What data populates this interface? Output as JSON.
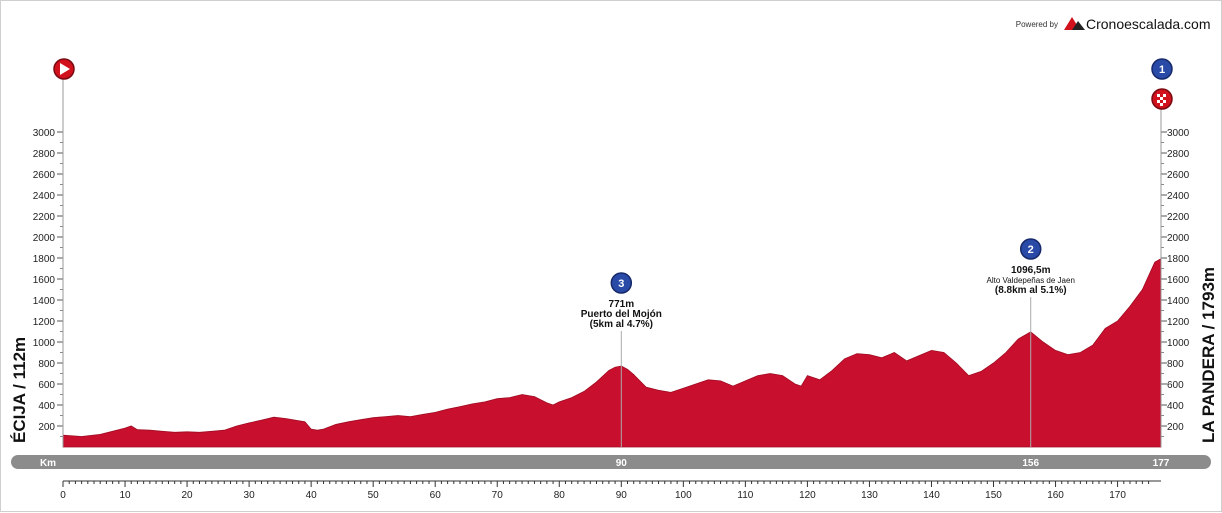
{
  "header": {
    "powered_by": "Powered by",
    "brand": "Cronoescalada.com",
    "brand_color": "#d1111c"
  },
  "chart_data": {
    "type": "area",
    "title": "",
    "xlabel": "",
    "ylabel": "",
    "xlim": [
      0,
      177
    ],
    "ylim": [
      0,
      3200
    ],
    "x_ticks": [
      0,
      10,
      20,
      30,
      40,
      50,
      60,
      70,
      80,
      90,
      100,
      110,
      120,
      130,
      140,
      150,
      160,
      170
    ],
    "y_ticks": [
      200,
      400,
      600,
      800,
      1000,
      1200,
      1400,
      1600,
      1800,
      2000,
      2200,
      2400,
      2600,
      2800,
      3000
    ],
    "grid": false,
    "fill_color": "#c8102e",
    "start_label": "ÉCIJA / 112m",
    "finish_label": "LA PANDERA / 1793m",
    "km_bar": {
      "label": "Km",
      "marks": [
        {
          "km": 90,
          "label": "90"
        },
        {
          "km": 156,
          "label": "156"
        },
        {
          "km": 177,
          "label": "177"
        }
      ]
    },
    "climbs": [
      {
        "km": 90,
        "category": "3",
        "altitude": "771m",
        "name": "Puerto del Mojón",
        "detail": "(5km al 4.7%)",
        "alt_value": 771
      },
      {
        "km": 156,
        "category": "2",
        "altitude": "1096,5m",
        "name": "Alto Valdepeñas de Jaen",
        "detail": "(8.8km al 5.1%)",
        "alt_value": 1096
      }
    ],
    "finish_category": "1",
    "series": [
      {
        "x": [
          0,
          3,
          6,
          8,
          10,
          11,
          12,
          14,
          16,
          18,
          20,
          22,
          24,
          26,
          28,
          30,
          32,
          34,
          36,
          38,
          39,
          40,
          41,
          42,
          44,
          46,
          48,
          50,
          52,
          54,
          56,
          58,
          60,
          62,
          64,
          66,
          68,
          70,
          72,
          74,
          76,
          78,
          79,
          80,
          82,
          84,
          86,
          88,
          89,
          90,
          91,
          92,
          94,
          96,
          98,
          100,
          102,
          104,
          106,
          108,
          110,
          112,
          114,
          116,
          118,
          119,
          120,
          122,
          124,
          126,
          128,
          130,
          132,
          134,
          136,
          138,
          140,
          142,
          144,
          146,
          148,
          150,
          152,
          154,
          156,
          158,
          160,
          162,
          164,
          166,
          168,
          170,
          172,
          174,
          176,
          177
        ],
        "y": [
          112,
          100,
          120,
          150,
          180,
          200,
          165,
          160,
          150,
          140,
          145,
          140,
          150,
          160,
          200,
          230,
          255,
          285,
          270,
          250,
          240,
          170,
          160,
          170,
          215,
          240,
          260,
          280,
          290,
          300,
          290,
          310,
          330,
          360,
          385,
          410,
          430,
          460,
          470,
          500,
          480,
          420,
          400,
          430,
          470,
          530,
          620,
          730,
          760,
          771,
          740,
          690,
          570,
          540,
          520,
          560,
          600,
          640,
          630,
          580,
          630,
          680,
          700,
          680,
          600,
          580,
          680,
          640,
          730,
          840,
          890,
          880,
          850,
          900,
          820,
          870,
          920,
          900,
          800,
          680,
          720,
          800,
          900,
          1030,
          1096,
          1000,
          920,
          880,
          900,
          970,
          1130,
          1200,
          1340,
          1500,
          1760,
          1793
        ]
      }
    ]
  }
}
